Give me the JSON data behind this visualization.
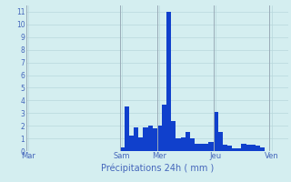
{
  "xlabel": "Précipitations 24h ( mm )",
  "background_color": "#d4eef0",
  "grid_color": "#b8d8dc",
  "bar_color": "#1040cc",
  "ylim": [
    0,
    11.5
  ],
  "yticks": [
    0,
    1,
    2,
    3,
    4,
    5,
    6,
    7,
    8,
    9,
    10,
    11
  ],
  "day_labels": [
    "Mar",
    "Sam",
    "Mer",
    "Jeu",
    "Ven"
  ],
  "day_positions": [
    0,
    20,
    28,
    40,
    52
  ],
  "num_bars": 56,
  "values": [
    0,
    0,
    0,
    0,
    0,
    0,
    0,
    0,
    0,
    0,
    0,
    0,
    0,
    0,
    0,
    0,
    0,
    0,
    0,
    0,
    0.3,
    3.5,
    1.2,
    1.9,
    1.1,
    1.9,
    2.0,
    1.8,
    2.0,
    3.7,
    11.0,
    2.4,
    1.0,
    1.1,
    1.5,
    1.0,
    0.6,
    0.6,
    0.6,
    0.7,
    3.1,
    1.5,
    0.5,
    0.4,
    0.2,
    0.2,
    0.6,
    0.5,
    0.5,
    0.4,
    0.3,
    0,
    0,
    0,
    0,
    0
  ]
}
